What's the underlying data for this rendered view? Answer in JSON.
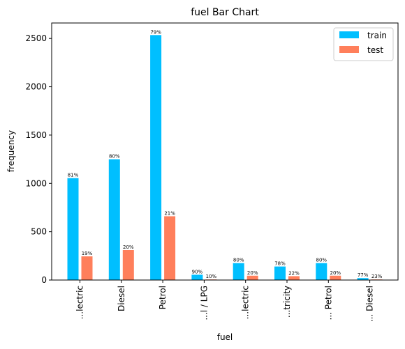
{
  "chart_data": {
    "type": "bar",
    "title": "fuel Bar Chart",
    "xlabel": "fuel",
    "ylabel": "frequency",
    "categories": [
      "...lectric",
      "Diesel",
      "Petrol",
      "...l / LPG",
      "...lectric",
      "...tricity",
      "... Petrol",
      "... Diesel"
    ],
    "ylim": [
      0,
      2660
    ],
    "yticks": [
      0,
      500,
      1000,
      1500,
      2000,
      2500
    ],
    "grid": false,
    "legend_position": "top-right",
    "series": [
      {
        "name": "train",
        "color": "#00bfff",
        "values": [
          1055,
          1250,
          2535,
          55,
          175,
          140,
          175,
          20
        ],
        "labels": [
          "81%",
          "80%",
          "79%",
          "90%",
          "80%",
          "78%",
          "80%",
          "77%"
        ]
      },
      {
        "name": "test",
        "color": "#ff7f5b",
        "values": [
          245,
          310,
          660,
          6,
          45,
          40,
          45,
          6
        ],
        "labels": [
          "19%",
          "20%",
          "21%",
          "10%",
          "20%",
          "22%",
          "20%",
          "23%"
        ]
      }
    ]
  }
}
